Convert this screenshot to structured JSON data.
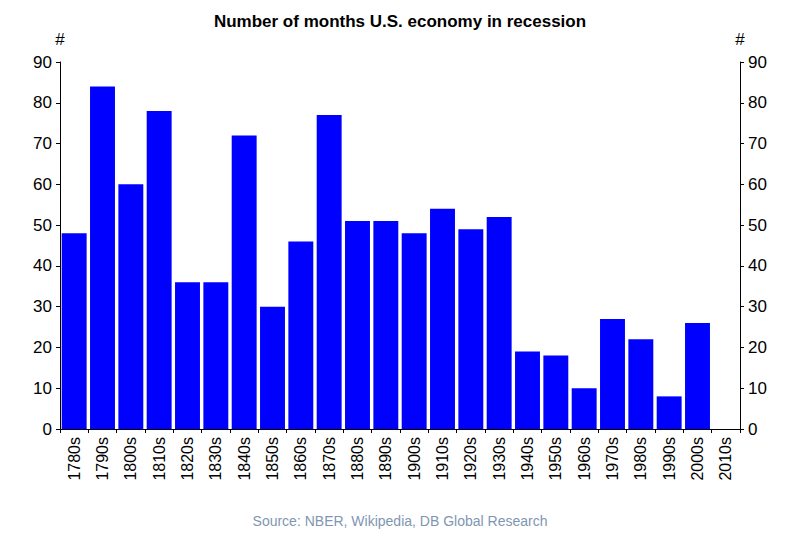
{
  "chart_data": {
    "type": "bar",
    "title": "Number of months U.S. economy in recession",
    "ylabel": "#",
    "y2label": "#",
    "caption": "Source: NBER, Wikipedia, DB Global Research",
    "categories": [
      "1780s",
      "1790s",
      "1800s",
      "1810s",
      "1820s",
      "1830s",
      "1840s",
      "1850s",
      "1860s",
      "1870s",
      "1880s",
      "1890s",
      "1900s",
      "1910s",
      "1920s",
      "1930s",
      "1940s",
      "1950s",
      "1960s",
      "1970s",
      "1980s",
      "1990s",
      "2000s",
      "2010s"
    ],
    "values": [
      48,
      84,
      60,
      78,
      36,
      36,
      72,
      30,
      46,
      77,
      51,
      51,
      48,
      54,
      49,
      52,
      19,
      18,
      10,
      27,
      22,
      8,
      26,
      0
    ],
    "color": "#0000ff",
    "ylim": [
      0,
      90
    ],
    "yticks": [
      0,
      10,
      20,
      30,
      40,
      50,
      60,
      70,
      80,
      90
    ],
    "y2lim": [
      0,
      90
    ],
    "y2ticks": [
      0,
      10,
      20,
      30,
      40,
      50,
      60,
      70,
      80,
      90
    ],
    "grid": false
  }
}
